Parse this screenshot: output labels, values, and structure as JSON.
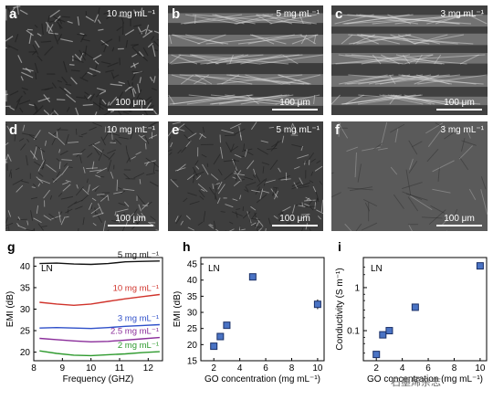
{
  "panels": [
    {
      "letter": "a",
      "conc": "10 mg mL⁻¹",
      "scale": "100 μm",
      "tone": "#363636",
      "style": "porous"
    },
    {
      "letter": "b",
      "conc": "5 mg mL⁻¹",
      "scale": "100 μm",
      "tone": "#3c3c3c",
      "style": "lamellar"
    },
    {
      "letter": "c",
      "conc": "3 mg mL⁻¹",
      "scale": "100 μm",
      "tone": "#404040",
      "style": "lamellar"
    },
    {
      "letter": "d",
      "conc": "10 mg mL⁻¹",
      "scale": "100 μm",
      "tone": "#444444",
      "style": "rough"
    },
    {
      "letter": "e",
      "conc": "5 mg mL⁻¹",
      "scale": "100 μm",
      "tone": "#3e3e3e",
      "style": "dense"
    },
    {
      "letter": "f",
      "conc": "3 mg mL⁻¹",
      "scale": "100 μm",
      "tone": "#5a5a5a",
      "style": "smooth"
    }
  ],
  "chart_g": {
    "letter": "g",
    "inner_label": "LN",
    "xlabel": "Frequency (GHZ)",
    "ylabel": "EMI (dB)",
    "xlim": [
      8,
      12.5
    ],
    "ylim": [
      18,
      42
    ],
    "xticks": [
      8,
      9,
      10,
      11,
      12
    ],
    "yticks": [
      20,
      25,
      30,
      35,
      40
    ],
    "series": [
      {
        "name": "5 mg mL⁻¹",
        "color": "#111111",
        "x": [
          8.2,
          8.8,
          9.4,
          10.0,
          10.6,
          11.2,
          11.8,
          12.4
        ],
        "y": [
          40.6,
          40.7,
          40.5,
          40.4,
          40.6,
          41.0,
          41.1,
          41.2
        ]
      },
      {
        "name": "10 mg mL⁻¹",
        "color": "#d0332b",
        "x": [
          8.2,
          8.8,
          9.4,
          10.0,
          10.6,
          11.2,
          11.8,
          12.4
        ],
        "y": [
          31.6,
          31.2,
          30.9,
          31.2,
          31.8,
          32.4,
          32.9,
          33.4
        ]
      },
      {
        "name": "3 mg mL⁻¹",
        "color": "#2e4fc9",
        "x": [
          8.2,
          8.8,
          9.4,
          10.0,
          10.6,
          11.2,
          11.8,
          12.4
        ],
        "y": [
          25.6,
          25.7,
          25.6,
          25.5,
          25.7,
          26.0,
          26.2,
          26.4
        ]
      },
      {
        "name": "2.5 mg mL⁻¹",
        "color": "#8a2d9a",
        "x": [
          8.2,
          8.8,
          9.4,
          10.0,
          10.6,
          11.2,
          11.8,
          12.4
        ],
        "y": [
          23.2,
          22.9,
          22.6,
          22.4,
          22.5,
          22.8,
          23.1,
          23.4
        ]
      },
      {
        "name": "2 mg mL⁻¹",
        "color": "#2e9a2e",
        "x": [
          8.2,
          8.8,
          9.4,
          10.0,
          10.6,
          11.2,
          11.8,
          12.4
        ],
        "y": [
          20.3,
          19.7,
          19.3,
          19.2,
          19.4,
          19.6,
          19.9,
          20.1
        ]
      }
    ]
  },
  "chart_h": {
    "letter": "h",
    "inner_label": "LN",
    "xlabel": "GO concentration (mg mL⁻¹)",
    "ylabel": "EMI (dB)",
    "xlim": [
      1,
      10.5
    ],
    "ylim": [
      15,
      47
    ],
    "xticks": [
      2,
      4,
      6,
      8,
      10
    ],
    "yticks": [
      15,
      20,
      25,
      30,
      35,
      40,
      45
    ],
    "points": [
      {
        "x": 2,
        "y": 19.5,
        "err": 1
      },
      {
        "x": 2.5,
        "y": 22.5,
        "err": 1
      },
      {
        "x": 3,
        "y": 26,
        "err": 0.8
      },
      {
        "x": 5,
        "y": 41,
        "err": 0.8
      },
      {
        "x": 10,
        "y": 32.5,
        "err": 1.5
      }
    ]
  },
  "chart_i": {
    "letter": "i",
    "inner_label": "LN",
    "xlabel": "GO concentration (mg mL⁻¹)",
    "ylabel": "Conductivity (S m⁻¹)",
    "scale": "log",
    "xlim": [
      1,
      10.5
    ],
    "ylim": [
      0.02,
      5
    ],
    "xticks": [
      2,
      4,
      6,
      8,
      10
    ],
    "yticks": [
      {
        "value": 0.1,
        "label": "0.1"
      },
      {
        "value": 1,
        "label": "1"
      }
    ],
    "points": [
      {
        "x": 2,
        "y": 0.028
      },
      {
        "x": 2.5,
        "y": 0.08
      },
      {
        "x": 3,
        "y": 0.1
      },
      {
        "x": 5,
        "y": 0.35
      },
      {
        "x": 10,
        "y": 3.2
      }
    ]
  },
  "watermark": "石墨烯杂志"
}
